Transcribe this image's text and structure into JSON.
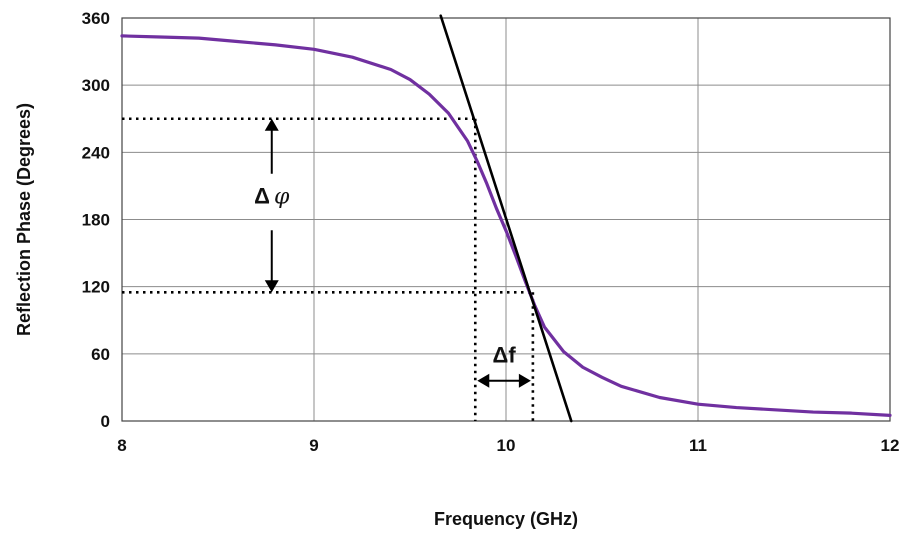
{
  "chart_data": {
    "type": "line",
    "title": "",
    "xlabel": "Frequency (GHz)",
    "ylabel": "Reflection Phase (Degrees)",
    "xlim": [
      8,
      12
    ],
    "ylim": [
      0,
      360
    ],
    "xticks": [
      8,
      9,
      10,
      11,
      12
    ],
    "yticks": [
      0,
      60,
      120,
      180,
      240,
      300,
      360
    ],
    "grid": true,
    "legend": "none",
    "series": [
      {
        "color": "#7030A0",
        "x": [
          8.0,
          8.2,
          8.4,
          8.6,
          8.8,
          9.0,
          9.2,
          9.4,
          9.5,
          9.6,
          9.7,
          9.8,
          9.85,
          9.9,
          9.95,
          10.0,
          10.05,
          10.1,
          10.15,
          10.2,
          10.3,
          10.4,
          10.5,
          10.6,
          10.8,
          11.0,
          11.2,
          11.4,
          11.6,
          11.8,
          12.0
        ],
        "y": [
          344,
          343,
          342,
          339,
          336,
          332,
          325,
          314,
          305,
          292,
          275,
          250,
          232,
          212,
          190,
          170,
          148,
          125,
          103,
          84,
          62,
          48,
          39,
          31,
          21,
          15,
          12,
          10,
          8,
          7,
          5
        ]
      },
      {
        "color": "#000000",
        "x": [
          9.66,
          10.34
        ],
        "y": [
          362,
          0
        ]
      }
    ],
    "annotations": {
      "delta_phi": {
        "symbol": "Δ",
        "variable": "φ",
        "upper_phase": 270,
        "lower_phase": 115,
        "arrow_x": 8.78
      },
      "delta_f": {
        "text": "Δf",
        "f_low": 9.84,
        "f_high": 10.14,
        "arrow_phase": 36
      }
    }
  }
}
